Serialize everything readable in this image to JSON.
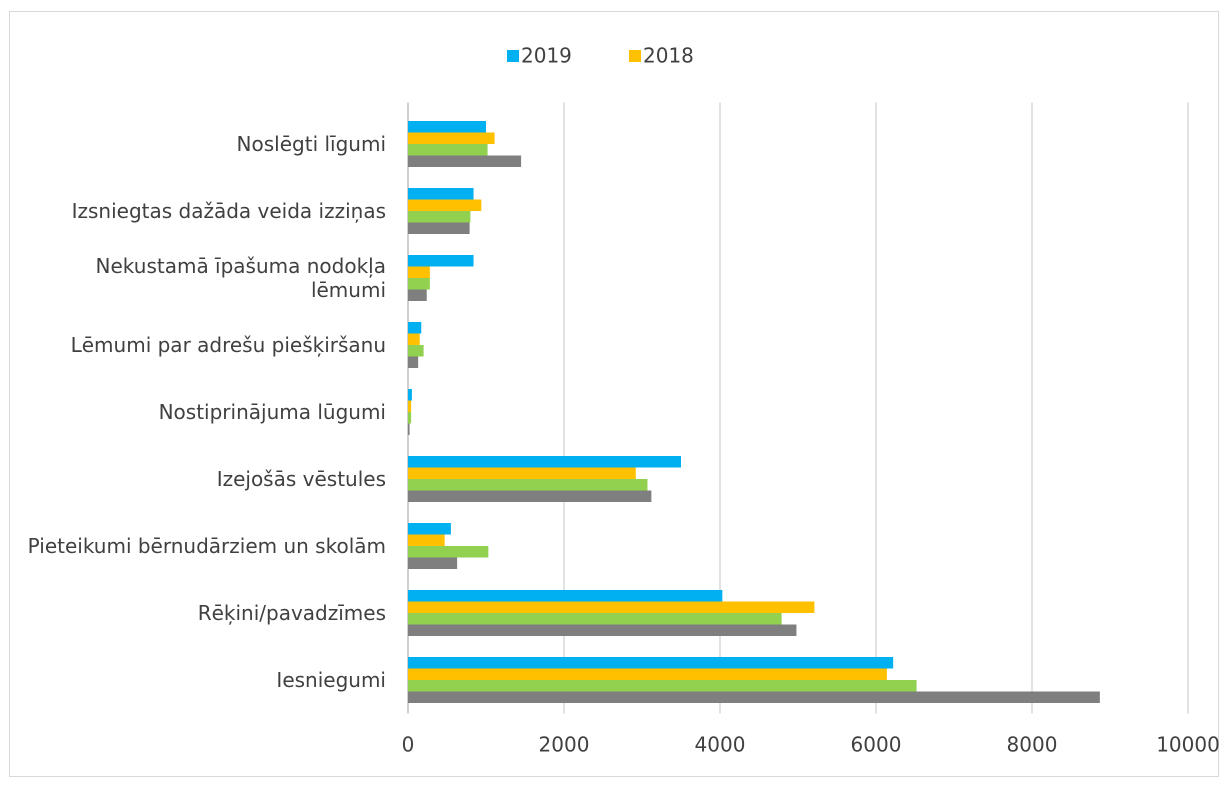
{
  "chart_data": {
    "type": "hbar",
    "categories": [
      "Noslēgti līgumi",
      "Izsniegtas dažāda veida izziņas",
      "Nekustamā īpašuma nodokļa lēmumi",
      "Lēmumi par adrešu piešķiršanu",
      "Nostiprinājuma lūgumi",
      "Izejošās vēstules",
      "Pieteikumi bērnudārziem un skolām",
      "Rēķini/pavadzīmes",
      "Iesniegumi"
    ],
    "series": [
      {
        "name": "2019",
        "color": "#00b0f0",
        "values": [
          1000,
          840,
          840,
          170,
          50,
          3500,
          550,
          4030,
          6220
        ]
      },
      {
        "name": "2018",
        "color": "#ffc000",
        "values": [
          1110,
          940,
          280,
          150,
          40,
          2920,
          470,
          5210,
          6140
        ]
      },
      {
        "color": "#92d050",
        "values": [
          1020,
          800,
          280,
          200,
          40,
          3070,
          1030,
          4790,
          6520
        ]
      },
      {
        "color": "#7f7f7f",
        "values": [
          1450,
          790,
          240,
          130,
          20,
          3120,
          630,
          4980,
          8870
        ]
      }
    ],
    "xlim": [
      0,
      10000
    ],
    "xticks": [
      0,
      2000,
      4000,
      6000,
      8000,
      10000
    ],
    "grid": true,
    "legend": "top"
  }
}
